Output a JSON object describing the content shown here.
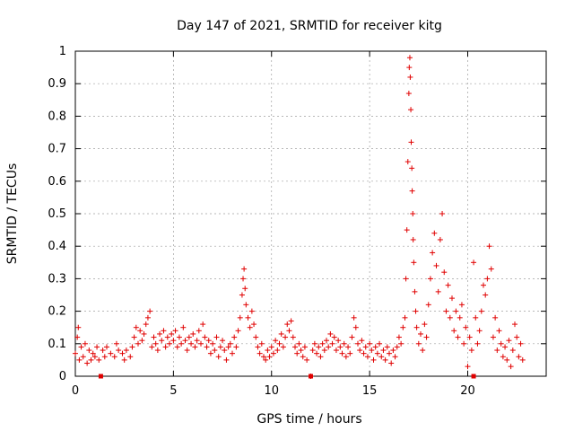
{
  "chart_data": {
    "type": "scatter",
    "title": "Day 147 of 2021, SRMTID for receiver kitg",
    "xlabel": "GPS time / hours",
    "ylabel": "SRMTID / TECUs",
    "xlim": [
      0,
      24
    ],
    "ylim": [
      0,
      1
    ],
    "xticks": [
      0,
      5,
      10,
      15,
      20
    ],
    "xtick_labels": [
      "0",
      "5",
      "10",
      "15",
      "20"
    ],
    "yticks": [
      0,
      0.1,
      0.2,
      0.3,
      0.4,
      0.5,
      0.6,
      0.7,
      0.8,
      0.9,
      1
    ],
    "ytick_labels": [
      "0",
      "0.1",
      "0.2",
      "0.3",
      "0.4",
      "0.5",
      "0.6",
      "0.7",
      "0.8",
      "0.9",
      "1"
    ],
    "grid": true,
    "marker": "+",
    "color": "#e00000",
    "series": [
      {
        "name": "SRMTID",
        "points": [
          [
            0.0,
            0.07
          ],
          [
            0.1,
            0.12
          ],
          [
            0.15,
            0.15
          ],
          [
            0.2,
            0.05
          ],
          [
            0.3,
            0.09
          ],
          [
            0.4,
            0.06
          ],
          [
            0.5,
            0.1
          ],
          [
            0.6,
            0.04
          ],
          [
            0.7,
            0.08
          ],
          [
            0.8,
            0.05
          ],
          [
            0.9,
            0.07
          ],
          [
            1.0,
            0.06
          ],
          [
            1.1,
            0.09
          ],
          [
            1.2,
            0.05
          ],
          [
            1.4,
            0.08
          ],
          [
            1.5,
            0.06
          ],
          [
            1.6,
            0.09
          ],
          [
            1.8,
            0.07
          ],
          [
            2.0,
            0.06
          ],
          [
            2.1,
            0.1
          ],
          [
            2.2,
            0.08
          ],
          [
            2.4,
            0.07
          ],
          [
            2.5,
            0.05
          ],
          [
            2.6,
            0.08
          ],
          [
            2.8,
            0.06
          ],
          [
            2.9,
            0.09
          ],
          [
            3.0,
            0.12
          ],
          [
            3.1,
            0.15
          ],
          [
            3.2,
            0.1
          ],
          [
            3.3,
            0.14
          ],
          [
            3.4,
            0.11
          ],
          [
            3.5,
            0.13
          ],
          [
            3.6,
            0.16
          ],
          [
            3.7,
            0.18
          ],
          [
            3.8,
            0.2
          ],
          [
            3.9,
            0.09
          ],
          [
            4.0,
            0.12
          ],
          [
            4.1,
            0.1
          ],
          [
            4.2,
            0.08
          ],
          [
            4.3,
            0.13
          ],
          [
            4.4,
            0.11
          ],
          [
            4.5,
            0.14
          ],
          [
            4.6,
            0.09
          ],
          [
            4.7,
            0.12
          ],
          [
            4.8,
            0.1
          ],
          [
            4.9,
            0.13
          ],
          [
            5.0,
            0.11
          ],
          [
            5.1,
            0.14
          ],
          [
            5.2,
            0.09
          ],
          [
            5.3,
            0.12
          ],
          [
            5.4,
            0.1
          ],
          [
            5.5,
            0.15
          ],
          [
            5.6,
            0.11
          ],
          [
            5.7,
            0.08
          ],
          [
            5.8,
            0.12
          ],
          [
            5.9,
            0.1
          ],
          [
            6.0,
            0.13
          ],
          [
            6.1,
            0.09
          ],
          [
            6.2,
            0.11
          ],
          [
            6.3,
            0.14
          ],
          [
            6.4,
            0.1
          ],
          [
            6.5,
            0.16
          ],
          [
            6.6,
            0.12
          ],
          [
            6.7,
            0.09
          ],
          [
            6.8,
            0.11
          ],
          [
            6.9,
            0.07
          ],
          [
            7.0,
            0.1
          ],
          [
            7.1,
            0.08
          ],
          [
            7.2,
            0.12
          ],
          [
            7.3,
            0.06
          ],
          [
            7.4,
            0.09
          ],
          [
            7.5,
            0.11
          ],
          [
            7.6,
            0.08
          ],
          [
            7.7,
            0.05
          ],
          [
            7.8,
            0.09
          ],
          [
            7.9,
            0.1
          ],
          [
            8.0,
            0.07
          ],
          [
            8.1,
            0.12
          ],
          [
            8.2,
            0.09
          ],
          [
            8.3,
            0.14
          ],
          [
            8.4,
            0.18
          ],
          [
            8.5,
            0.25
          ],
          [
            8.55,
            0.3
          ],
          [
            8.6,
            0.33
          ],
          [
            8.65,
            0.27
          ],
          [
            8.7,
            0.22
          ],
          [
            8.8,
            0.18
          ],
          [
            8.9,
            0.15
          ],
          [
            9.0,
            0.2
          ],
          [
            9.1,
            0.16
          ],
          [
            9.2,
            0.12
          ],
          [
            9.3,
            0.09
          ],
          [
            9.4,
            0.07
          ],
          [
            9.5,
            0.1
          ],
          [
            9.6,
            0.06
          ],
          [
            9.7,
            0.05
          ],
          [
            9.8,
            0.08
          ],
          [
            9.9,
            0.06
          ],
          [
            10.0,
            0.09
          ],
          [
            10.1,
            0.07
          ],
          [
            10.2,
            0.11
          ],
          [
            10.3,
            0.08
          ],
          [
            10.4,
            0.1
          ],
          [
            10.5,
            0.13
          ],
          [
            10.6,
            0.09
          ],
          [
            10.7,
            0.12
          ],
          [
            10.8,
            0.16
          ],
          [
            10.9,
            0.14
          ],
          [
            11.0,
            0.17
          ],
          [
            11.1,
            0.12
          ],
          [
            11.2,
            0.09
          ],
          [
            11.3,
            0.07
          ],
          [
            11.4,
            0.1
          ],
          [
            11.5,
            0.08
          ],
          [
            11.6,
            0.06
          ],
          [
            11.7,
            0.09
          ],
          [
            11.8,
            0.05
          ],
          [
            12.0,
            0.0
          ],
          [
            12.1,
            0.08
          ],
          [
            12.2,
            0.1
          ],
          [
            12.3,
            0.07
          ],
          [
            12.4,
            0.09
          ],
          [
            12.5,
            0.06
          ],
          [
            12.6,
            0.1
          ],
          [
            12.7,
            0.08
          ],
          [
            12.8,
            0.11
          ],
          [
            12.9,
            0.09
          ],
          [
            13.0,
            0.13
          ],
          [
            13.1,
            0.1
          ],
          [
            13.2,
            0.12
          ],
          [
            13.3,
            0.08
          ],
          [
            13.4,
            0.11
          ],
          [
            13.5,
            0.09
          ],
          [
            13.6,
            0.07
          ],
          [
            13.7,
            0.1
          ],
          [
            13.8,
            0.06
          ],
          [
            13.9,
            0.09
          ],
          [
            14.0,
            0.07
          ],
          [
            14.1,
            0.12
          ],
          [
            14.2,
            0.18
          ],
          [
            14.3,
            0.15
          ],
          [
            14.4,
            0.1
          ],
          [
            14.5,
            0.08
          ],
          [
            14.6,
            0.11
          ],
          [
            14.7,
            0.07
          ],
          [
            14.8,
            0.09
          ],
          [
            14.9,
            0.06
          ],
          [
            15.0,
            0.1
          ],
          [
            15.1,
            0.08
          ],
          [
            15.2,
            0.05
          ],
          [
            15.3,
            0.09
          ],
          [
            15.4,
            0.07
          ],
          [
            15.5,
            0.1
          ],
          [
            15.6,
            0.06
          ],
          [
            15.7,
            0.08
          ],
          [
            15.8,
            0.05
          ],
          [
            15.9,
            0.09
          ],
          [
            16.0,
            0.07
          ],
          [
            16.1,
            0.04
          ],
          [
            16.2,
            0.08
          ],
          [
            16.3,
            0.06
          ],
          [
            16.4,
            0.09
          ],
          [
            16.5,
            0.12
          ],
          [
            16.6,
            0.1
          ],
          [
            16.7,
            0.15
          ],
          [
            16.8,
            0.18
          ],
          [
            16.85,
            0.3
          ],
          [
            16.9,
            0.45
          ],
          [
            16.95,
            0.66
          ],
          [
            17.0,
            0.87
          ],
          [
            17.02,
            0.95
          ],
          [
            17.05,
            0.98
          ],
          [
            17.07,
            0.92
          ],
          [
            17.1,
            0.82
          ],
          [
            17.12,
            0.72
          ],
          [
            17.15,
            0.64
          ],
          [
            17.17,
            0.57
          ],
          [
            17.2,
            0.5
          ],
          [
            17.22,
            0.42
          ],
          [
            17.25,
            0.35
          ],
          [
            17.3,
            0.26
          ],
          [
            17.35,
            0.2
          ],
          [
            17.4,
            0.15
          ],
          [
            17.5,
            0.1
          ],
          [
            17.6,
            0.13
          ],
          [
            17.7,
            0.08
          ],
          [
            17.8,
            0.16
          ],
          [
            17.9,
            0.12
          ],
          [
            18.0,
            0.22
          ],
          [
            18.1,
            0.3
          ],
          [
            18.2,
            0.38
          ],
          [
            18.3,
            0.44
          ],
          [
            18.4,
            0.34
          ],
          [
            18.5,
            0.26
          ],
          [
            18.6,
            0.42
          ],
          [
            18.7,
            0.5
          ],
          [
            18.8,
            0.32
          ],
          [
            18.9,
            0.2
          ],
          [
            19.0,
            0.28
          ],
          [
            19.1,
            0.18
          ],
          [
            19.2,
            0.24
          ],
          [
            19.3,
            0.14
          ],
          [
            19.4,
            0.2
          ],
          [
            19.5,
            0.12
          ],
          [
            19.6,
            0.18
          ],
          [
            19.7,
            0.22
          ],
          [
            19.8,
            0.1
          ],
          [
            19.9,
            0.15
          ],
          [
            20.0,
            0.03
          ],
          [
            20.1,
            0.12
          ],
          [
            20.2,
            0.08
          ],
          [
            20.3,
            0.35
          ],
          [
            20.4,
            0.18
          ],
          [
            20.5,
            0.1
          ],
          [
            20.6,
            0.14
          ],
          [
            20.7,
            0.2
          ],
          [
            20.8,
            0.28
          ],
          [
            20.9,
            0.25
          ],
          [
            21.0,
            0.3
          ],
          [
            21.1,
            0.4
          ],
          [
            21.2,
            0.33
          ],
          [
            21.3,
            0.12
          ],
          [
            21.4,
            0.18
          ],
          [
            21.5,
            0.08
          ],
          [
            21.6,
            0.14
          ],
          [
            21.7,
            0.1
          ],
          [
            21.8,
            0.06
          ],
          [
            21.9,
            0.09
          ],
          [
            22.0,
            0.05
          ],
          [
            22.1,
            0.11
          ],
          [
            22.2,
            0.03
          ],
          [
            22.3,
            0.08
          ],
          [
            22.4,
            0.16
          ],
          [
            22.5,
            0.12
          ],
          [
            22.6,
            0.06
          ],
          [
            22.7,
            0.1
          ],
          [
            22.8,
            0.05
          ]
        ]
      }
    ],
    "zero_markers": [
      [
        1.3,
        0.0
      ],
      [
        12.0,
        0.0
      ],
      [
        20.3,
        0.0
      ]
    ]
  }
}
